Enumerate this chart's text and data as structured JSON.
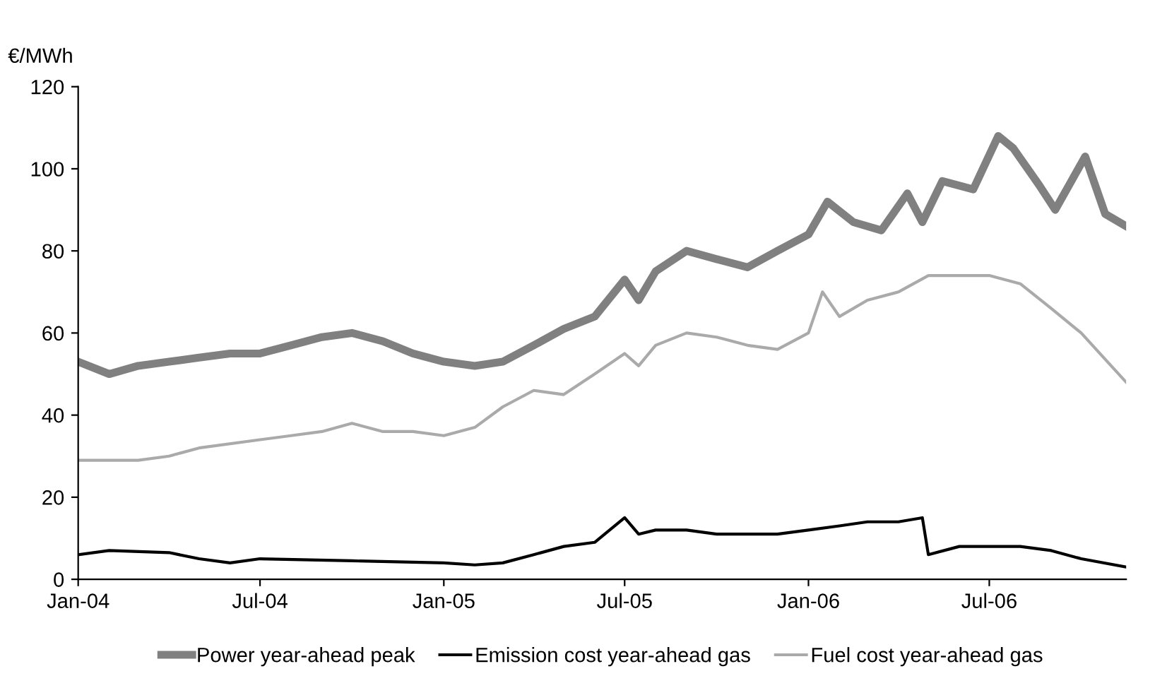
{
  "chart_data": {
    "type": "line",
    "ylabel": "€/MWh",
    "ylim": [
      0,
      120
    ],
    "yticks": [
      0,
      20,
      40,
      60,
      80,
      100,
      120
    ],
    "xlim": [
      "2004-01-01",
      "2006-11-15"
    ],
    "xticks": [
      {
        "value": "2004-01-01",
        "label": "Jan-04"
      },
      {
        "value": "2004-07-01",
        "label": "Jul-04"
      },
      {
        "value": "2005-01-01",
        "label": "Jan-05"
      },
      {
        "value": "2005-07-01",
        "label": "Jul-05"
      },
      {
        "value": "2006-01-01",
        "label": "Jan-06"
      },
      {
        "value": "2006-07-01",
        "label": "Jul-06"
      }
    ],
    "grid": false,
    "legend": "bottom",
    "line_style": "solid",
    "marker": "none",
    "series": [
      {
        "name": "Power year-ahead peak",
        "color": "#808080",
        "x": [
          "2004-01-01",
          "2004-02-01",
          "2004-03-01",
          "2004-04-01",
          "2004-05-01",
          "2004-06-01",
          "2004-07-01",
          "2004-08-01",
          "2004-09-01",
          "2004-10-01",
          "2004-11-01",
          "2004-12-01",
          "2005-01-01",
          "2005-02-01",
          "2005-03-01",
          "2005-04-01",
          "2005-05-01",
          "2005-06-01",
          "2005-07-01",
          "2005-07-15",
          "2005-08-01",
          "2005-09-01",
          "2005-10-01",
          "2005-11-01",
          "2005-12-01",
          "2006-01-01",
          "2006-01-20",
          "2006-02-15",
          "2006-03-15",
          "2006-04-10",
          "2006-04-25",
          "2006-05-15",
          "2006-06-15",
          "2006-07-10",
          "2006-07-25",
          "2006-08-20",
          "2006-09-05",
          "2006-10-05",
          "2006-10-25",
          "2006-11-15"
        ],
        "values": [
          53,
          50,
          52,
          53,
          54,
          55,
          55,
          57,
          59,
          60,
          58,
          55,
          53,
          52,
          53,
          57,
          61,
          64,
          73,
          68,
          75,
          80,
          78,
          76,
          80,
          84,
          92,
          87,
          85,
          94,
          87,
          97,
          95,
          108,
          105,
          96,
          90,
          103,
          89,
          86
        ]
      },
      {
        "name": "Emission cost year-ahead gas",
        "color": "#000000",
        "x": [
          "2004-01-01",
          "2004-02-01",
          "2004-04-01",
          "2004-05-01",
          "2004-06-01",
          "2004-07-01",
          "2004-10-01",
          "2005-01-01",
          "2005-02-01",
          "2005-03-01",
          "2005-04-01",
          "2005-05-01",
          "2005-06-01",
          "2005-07-01",
          "2005-07-15",
          "2005-08-01",
          "2005-09-01",
          "2005-10-01",
          "2005-12-01",
          "2006-01-01",
          "2006-02-01",
          "2006-03-01",
          "2006-04-01",
          "2006-04-25",
          "2006-05-01",
          "2006-06-01",
          "2006-07-01",
          "2006-08-01",
          "2006-09-01",
          "2006-10-01",
          "2006-11-15"
        ],
        "values": [
          6,
          7,
          6.5,
          5,
          4,
          5,
          4.5,
          4,
          3.5,
          4,
          6,
          8,
          9,
          15,
          11,
          12,
          12,
          11,
          11,
          12,
          13,
          14,
          14,
          15,
          6,
          8,
          8,
          8,
          7,
          5,
          3
        ]
      },
      {
        "name": "Fuel cost year-ahead gas",
        "color": "#aaaaaa",
        "x": [
          "2004-01-01",
          "2004-03-01",
          "2004-04-01",
          "2004-05-01",
          "2004-07-01",
          "2004-08-01",
          "2004-09-01",
          "2004-10-01",
          "2004-11-01",
          "2004-12-01",
          "2005-01-01",
          "2005-02-01",
          "2005-03-01",
          "2005-04-01",
          "2005-05-01",
          "2005-06-01",
          "2005-07-01",
          "2005-07-15",
          "2005-08-01",
          "2005-09-01",
          "2005-10-01",
          "2005-11-01",
          "2005-12-01",
          "2006-01-01",
          "2006-01-15",
          "2006-02-01",
          "2006-03-01",
          "2006-04-01",
          "2006-05-01",
          "2006-06-01",
          "2006-07-01",
          "2006-08-01",
          "2006-09-01",
          "2006-10-01",
          "2006-11-15"
        ],
        "values": [
          29,
          29,
          30,
          32,
          34,
          35,
          36,
          38,
          36,
          36,
          35,
          37,
          42,
          46,
          45,
          50,
          55,
          52,
          57,
          60,
          59,
          57,
          56,
          60,
          70,
          64,
          68,
          70,
          74,
          74,
          74,
          72,
          66,
          60,
          48
        ]
      }
    ]
  }
}
